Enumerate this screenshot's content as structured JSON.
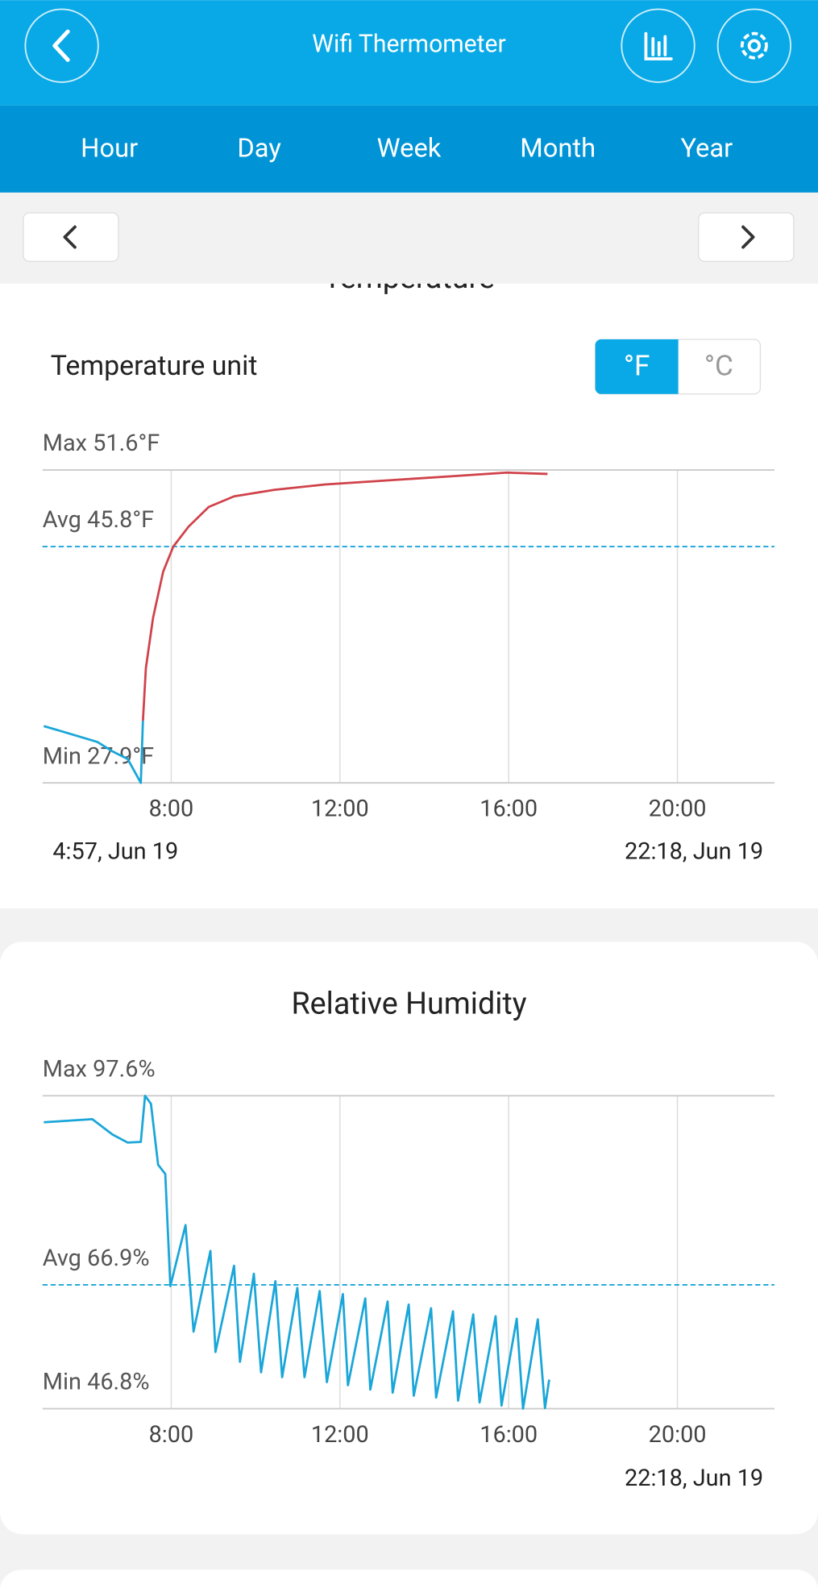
{
  "header": {
    "title": "Wifi Thermometer"
  },
  "tabs": [
    "Hour",
    "Day",
    "Week",
    "Month",
    "Year"
  ],
  "temperature_unit": {
    "label": "Temperature unit",
    "options": [
      "°F",
      "°C"
    ]
  },
  "chart_data": [
    {
      "type": "line",
      "title": "Temperature",
      "x": [
        4.98,
        5.41,
        6.25,
        6.6,
        6.97,
        7.28,
        7.33,
        7.4,
        7.57,
        7.81,
        8.05,
        8.41,
        8.89,
        9.49,
        10.45,
        11.65,
        13.08,
        14.52,
        15.96,
        16.92
      ],
      "series": [
        {
          "color": "#1aa6d8",
          "values": [
            32.2,
            31.8,
            31.0,
            30.3,
            29.7,
            27.9,
            32.6,
            null,
            null,
            null,
            null,
            null,
            null,
            null,
            null,
            null,
            null,
            null,
            null,
            null
          ]
        },
        {
          "color": "#d0424a",
          "values": [
            null,
            null,
            null,
            null,
            null,
            null,
            32.6,
            36.6,
            40.4,
            43.9,
            45.8,
            47.3,
            48.8,
            49.6,
            50.1,
            50.5,
            50.8,
            51.1,
            51.4,
            51.3
          ]
        }
      ],
      "xlim": [
        4.95,
        22.3
      ],
      "ylim": [
        27.9,
        51.6
      ],
      "xticks": [
        {
          "value": 8,
          "label": "8:00"
        },
        {
          "value": 12,
          "label": "12:00"
        },
        {
          "value": 16,
          "label": "16:00"
        },
        {
          "value": 20,
          "label": "20:00"
        }
      ],
      "reference_lines": [
        {
          "value": 51.6,
          "label": "Max 51.6°F"
        },
        {
          "value": 45.8,
          "label": "Avg 45.8°F"
        },
        {
          "value": 27.9,
          "label": "Min 27.9°F"
        }
      ],
      "start_label": "4:57, Jun 19",
      "end_label": "22:18, Jun 19"
    },
    {
      "type": "line",
      "title": "Relative Humidity",
      "x": [
        4.98,
        6.13,
        6.61,
        6.97,
        7.28,
        7.38,
        7.52,
        7.69,
        7.86,
        7.98,
        8.34,
        8.53,
        8.93,
        9.05,
        9.49,
        9.63,
        9.96,
        10.13,
        10.47,
        10.63,
        10.99,
        11.16,
        11.52,
        11.69,
        12.07,
        12.19,
        12.6,
        12.72,
        13.13,
        13.25,
        13.63,
        13.75,
        14.16,
        14.28,
        14.68,
        14.8,
        15.16,
        15.31,
        15.69,
        15.83,
        16.19,
        16.34,
        16.69,
        16.86,
        16.96
      ],
      "series": [
        {
          "color": "#1aa6d8",
          "values": [
            93.3,
            93.8,
            91.3,
            90.0,
            90.1,
            97.6,
            96.3,
            86.4,
            84.9,
            66.7,
            76.6,
            59.3,
            72.4,
            56.0,
            70.0,
            54.4,
            68.7,
            52.7,
            67.5,
            51.9,
            66.4,
            51.9,
            65.9,
            51.1,
            65.4,
            50.6,
            64.7,
            49.9,
            64.2,
            49.4,
            63.7,
            48.9,
            63.1,
            48.6,
            62.6,
            48.1,
            62.1,
            47.8,
            61.8,
            47.3,
            61.4,
            46.8,
            61.3,
            46.9,
            51.5
          ]
        }
      ],
      "xlim": [
        4.95,
        22.3
      ],
      "ylim": [
        46.8,
        97.6
      ],
      "xticks": [
        {
          "value": 8,
          "label": "8:00"
        },
        {
          "value": 12,
          "label": "12:00"
        },
        {
          "value": 16,
          "label": "16:00"
        },
        {
          "value": 20,
          "label": "20:00"
        }
      ],
      "reference_lines": [
        {
          "value": 97.6,
          "label": "Max 97.6%"
        },
        {
          "value": 66.9,
          "label": "Avg 66.9%"
        },
        {
          "value": 46.8,
          "label": "Min 46.8%"
        }
      ],
      "end_label": "22:18, Jun 19"
    }
  ]
}
